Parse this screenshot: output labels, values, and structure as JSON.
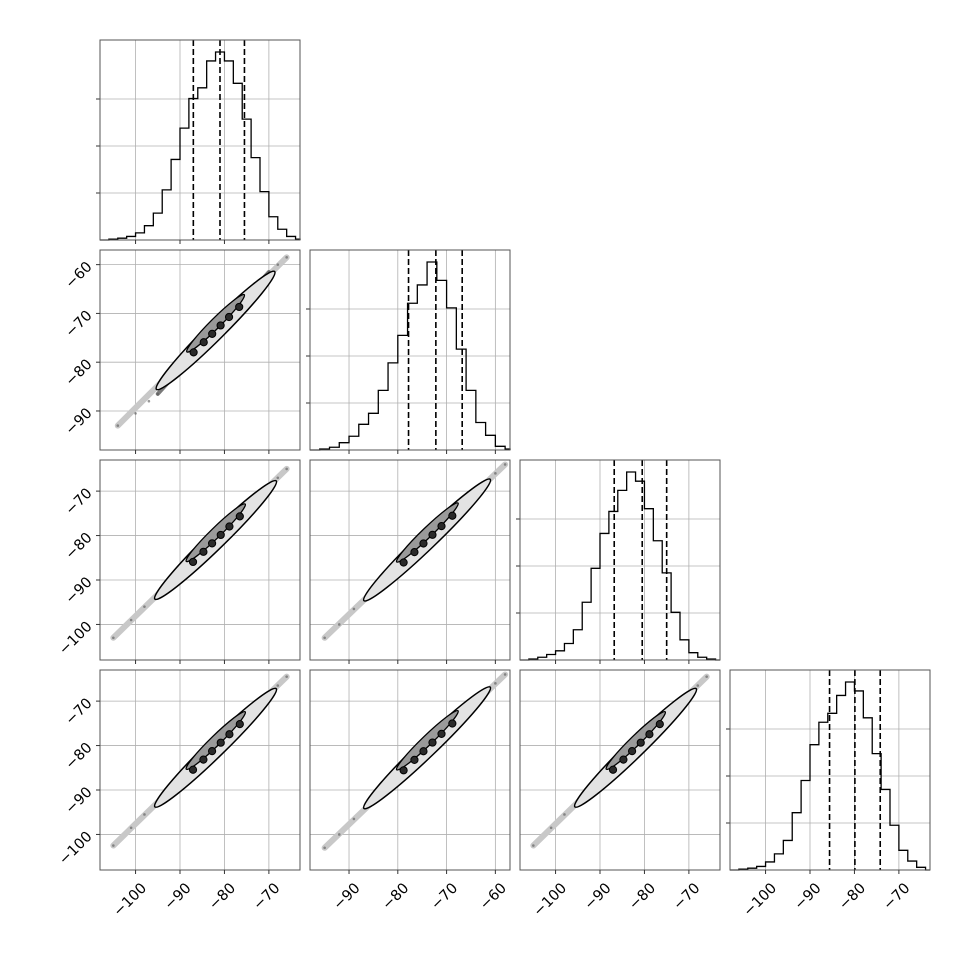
{
  "chart_data": {
    "type": "corner",
    "n_params": 4,
    "grid": true,
    "axis_ranges": [
      [
        -108,
        -63
      ],
      [
        -98,
        -57
      ],
      [
        -108,
        -63
      ],
      [
        -108,
        -63
      ]
    ],
    "axis_ticks": [
      [
        -100,
        -90,
        -80,
        -70
      ],
      [
        -90,
        -80,
        -70,
        -60
      ],
      [
        -100,
        -90,
        -80,
        -70
      ],
      [
        -100,
        -90,
        -80,
        -70
      ]
    ],
    "axis_tick_labels": [
      [
        "−100",
        "−90",
        "−80",
        "−70"
      ],
      [
        "−90",
        "−80",
        "−70",
        "−60"
      ],
      [
        "−100",
        "−90",
        "−80",
        "−70"
      ],
      [
        "−100",
        "−90",
        "−80",
        "−70"
      ]
    ],
    "quantiles": [
      [
        -87.0,
        -81.0,
        -75.5
      ],
      [
        -77.8,
        -72.2,
        -66.8
      ],
      [
        -86.8,
        -80.5,
        -75.0
      ],
      [
        -85.6,
        -79.9,
        -74.2
      ]
    ],
    "histograms": [
      {
        "bin_edges": [
          -108,
          -106,
          -104,
          -102,
          -100,
          -98,
          -96,
          -94,
          -92,
          -90,
          -88,
          -86,
          -84,
          -82,
          -80,
          -78,
          -76,
          -74,
          -72,
          -70,
          -68,
          -66,
          -64,
          -63
        ],
        "counts": [
          0,
          1,
          2,
          4,
          8,
          16,
          30,
          56,
          90,
          125,
          158,
          170,
          200,
          210,
          200,
          175,
          135,
          92,
          54,
          26,
          12,
          4,
          1
        ]
      },
      {
        "bin_edges": [
          -98,
          -96,
          -94,
          -92,
          -90,
          -88,
          -86,
          -84,
          -82,
          -80,
          -78,
          -76,
          -74,
          -72,
          -70,
          -68,
          -66,
          -64,
          -62,
          -60,
          -58,
          -57
        ],
        "counts": [
          0,
          1,
          3,
          8,
          15,
          28,
          40,
          65,
          95,
          125,
          160,
          180,
          205,
          185,
          155,
          110,
          65,
          30,
          16,
          4,
          1
        ]
      },
      {
        "bin_edges": [
          -108,
          -106,
          -104,
          -102,
          -100,
          -98,
          -96,
          -94,
          -92,
          -90,
          -88,
          -86,
          -84,
          -82,
          -80,
          -78,
          -76,
          -74,
          -72,
          -70,
          -68,
          -66,
          -64,
          -63
        ],
        "counts": [
          0,
          1,
          3,
          6,
          10,
          18,
          33,
          63,
          100,
          138,
          162,
          185,
          205,
          195,
          165,
          130,
          95,
          52,
          22,
          8,
          3,
          1,
          0
        ]
      },
      {
        "bin_edges": [
          -108,
          -106,
          -104,
          -102,
          -100,
          -98,
          -96,
          -94,
          -92,
          -90,
          -88,
          -86,
          -84,
          -82,
          -80,
          -78,
          -76,
          -74,
          -72,
          -70,
          -68,
          -66,
          -64,
          -63
        ],
        "counts": [
          0,
          1,
          2,
          4,
          9,
          18,
          33,
          64,
          100,
          140,
          165,
          175,
          195,
          210,
          200,
          170,
          130,
          90,
          50,
          22,
          10,
          3,
          0
        ]
      }
    ],
    "scatter_panels": [
      {
        "row": 1,
        "col": 0,
        "points": [
          [
            -104,
            -93
          ],
          [
            -100,
            -90.5
          ],
          [
            -97,
            -88
          ],
          [
            -95,
            -86.5
          ],
          [
            -92,
            -83.5
          ],
          [
            -90,
            -81.5
          ],
          [
            -88,
            -79.5
          ],
          [
            -86,
            -77.5
          ],
          [
            -84,
            -75.5
          ],
          [
            -82,
            -73.5
          ],
          [
            -80,
            -71.5
          ],
          [
            -78,
            -69.5
          ],
          [
            -76,
            -67.5
          ],
          [
            -74,
            -65.5
          ],
          [
            -72,
            -63.5
          ],
          [
            -70,
            -61.5
          ],
          [
            -68,
            -60
          ],
          [
            -66,
            -58.5
          ]
        ]
      },
      {
        "row": 2,
        "col": 0,
        "points": [
          [
            -105,
            -103
          ],
          [
            -101,
            -99
          ],
          [
            -98,
            -96
          ],
          [
            -95,
            -93.5
          ],
          [
            -92,
            -90.5
          ],
          [
            -90,
            -88.5
          ],
          [
            -88,
            -86.5
          ],
          [
            -86,
            -85
          ],
          [
            -84,
            -83
          ],
          [
            -82,
            -81
          ],
          [
            -80,
            -79
          ],
          [
            -78,
            -77
          ],
          [
            -76,
            -75
          ],
          [
            -74,
            -73
          ],
          [
            -72,
            -71
          ],
          [
            -70,
            -69
          ],
          [
            -68,
            -67
          ],
          [
            -66,
            -65
          ]
        ]
      },
      {
        "row": 2,
        "col": 1,
        "points": [
          [
            -95,
            -103
          ],
          [
            -92,
            -100
          ],
          [
            -89,
            -96.5
          ],
          [
            -86,
            -93.5
          ],
          [
            -83,
            -90
          ],
          [
            -80,
            -87.5
          ],
          [
            -78,
            -85.5
          ],
          [
            -76,
            -83
          ],
          [
            -74,
            -81
          ],
          [
            -72,
            -79
          ],
          [
            -70,
            -77
          ],
          [
            -68,
            -75
          ],
          [
            -66,
            -73
          ],
          [
            -64,
            -70.5
          ],
          [
            -62,
            -68.5
          ],
          [
            -60,
            -66
          ],
          [
            -58,
            -64
          ]
        ]
      },
      {
        "row": 3,
        "col": 0,
        "points": [
          [
            -105,
            -102.5
          ],
          [
            -101,
            -98.5
          ],
          [
            -98,
            -95.5
          ],
          [
            -95,
            -93
          ],
          [
            -92,
            -90
          ],
          [
            -90,
            -88
          ],
          [
            -88,
            -86
          ],
          [
            -86,
            -84.5
          ],
          [
            -84,
            -82.5
          ],
          [
            -82,
            -80.5
          ],
          [
            -80,
            -78.5
          ],
          [
            -78,
            -76.5
          ],
          [
            -76,
            -74.5
          ],
          [
            -74,
            -72.5
          ],
          [
            -72,
            -70.5
          ],
          [
            -70,
            -68.5
          ],
          [
            -68,
            -66.5
          ],
          [
            -66,
            -64.5
          ]
        ]
      },
      {
        "row": 3,
        "col": 1,
        "points": [
          [
            -95,
            -103
          ],
          [
            -92,
            -100
          ],
          [
            -89,
            -96.5
          ],
          [
            -86,
            -93.5
          ],
          [
            -83,
            -90
          ],
          [
            -80,
            -87.5
          ],
          [
            -78,
            -85.5
          ],
          [
            -76,
            -83
          ],
          [
            -74,
            -80.5
          ],
          [
            -72,
            -78.5
          ],
          [
            -70,
            -76.5
          ],
          [
            -68,
            -74.5
          ],
          [
            -66,
            -72.5
          ],
          [
            -64,
            -70
          ],
          [
            -62,
            -68
          ],
          [
            -60,
            -66
          ],
          [
            -58,
            -64
          ]
        ]
      },
      {
        "row": 3,
        "col": 2,
        "points": [
          [
            -105,
            -102.5
          ],
          [
            -101,
            -98.5
          ],
          [
            -98,
            -95.5
          ],
          [
            -95,
            -92.5
          ],
          [
            -92,
            -90
          ],
          [
            -90,
            -88
          ],
          [
            -88,
            -86
          ],
          [
            -86,
            -84.5
          ],
          [
            -84,
            -82.5
          ],
          [
            -82,
            -80.5
          ],
          [
            -80,
            -78.5
          ],
          [
            -78,
            -76.5
          ],
          [
            -76,
            -74.5
          ],
          [
            -74,
            -72.5
          ],
          [
            -72,
            -70.5
          ],
          [
            -70,
            -68.5
          ],
          [
            -68,
            -66.5
          ],
          [
            -66,
            -64.5
          ]
        ]
      }
    ]
  }
}
